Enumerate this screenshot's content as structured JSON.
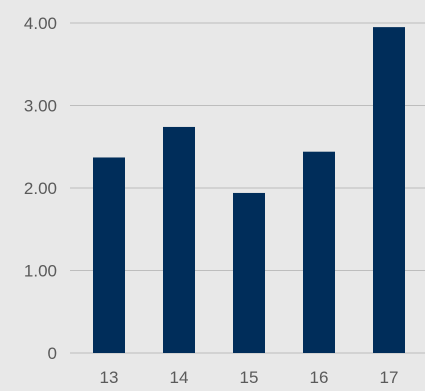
{
  "chart_data": {
    "type": "bar",
    "title": "",
    "xlabel": "",
    "ylabel": "",
    "categories": [
      "13",
      "14",
      "15",
      "16",
      "17"
    ],
    "values": [
      2.37,
      2.74,
      1.94,
      2.44,
      3.95
    ],
    "ylim": [
      0,
      4.0
    ],
    "yticks": [
      0,
      1.0,
      2.0,
      3.0,
      4.0
    ],
    "ytick_labels": [
      "0",
      "1.00",
      "2.00",
      "3.00",
      "4.00"
    ],
    "grid": "horizontal",
    "legend": "none",
    "colors": {
      "bar": "#002d5a",
      "grid": "#bdbdbd",
      "background": "#e8e8e8",
      "text": "#5a5a5a"
    }
  }
}
